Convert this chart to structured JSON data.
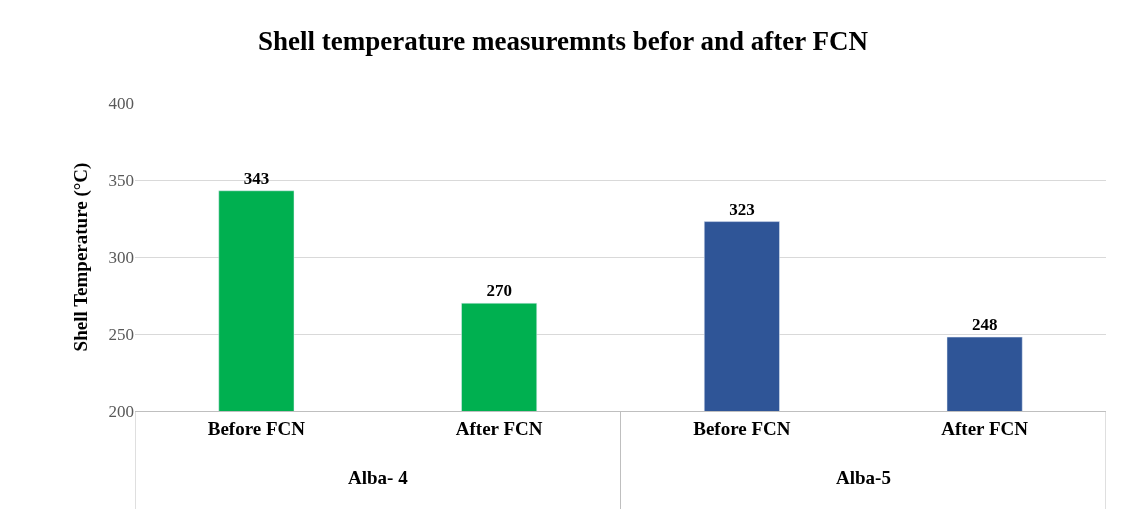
{
  "chart_data": {
    "type": "bar",
    "title": "Shell temperature measuremnts befor and after FCN",
    "ylabel": "Shell Temperature (°C)",
    "categories": [
      "Before FCN",
      "After FCN",
      "Before FCN",
      "After FCN"
    ],
    "series": [
      {
        "color": "#00b050",
        "values": [
          343,
          270,
          null,
          null
        ]
      },
      {
        "color": "#2f5597",
        "values": [
          null,
          null,
          323,
          248
        ]
      }
    ],
    "annotations": [
      "Alba- 4",
      "Alba-5"
    ],
    "ylim": [
      200,
      400
    ],
    "yticks": [
      200,
      250,
      300,
      350,
      400
    ],
    "grid": "y",
    "data_labels": true
  }
}
